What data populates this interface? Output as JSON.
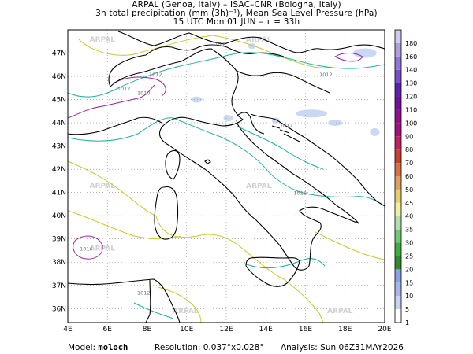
{
  "title": {
    "line1": "ARPAL (Genoa, Italy)  –  ISAC–CNR (Bologna, Italy)",
    "line2": "3h total precipitation (mm (3h)⁻¹), Mean Sea Level Pressure (hPa)",
    "line3": "15 UTC Mon 01 JUN  –  τ = 33h"
  },
  "map": {
    "lon_range": [
      4,
      20
    ],
    "lat_range": [
      35.4,
      48.0
    ],
    "lon_ticks": [
      "4E",
      "6E",
      "8E",
      "10E",
      "12E",
      "14E",
      "16E",
      "18E",
      "20E"
    ],
    "lat_ticks": [
      "36N",
      "37N",
      "38N",
      "39N",
      "40N",
      "41N",
      "42N",
      "43N",
      "44N",
      "45N",
      "46N",
      "47N"
    ],
    "watermark": "ARPAL",
    "isobar_labels": [
      {
        "text": "1012",
        "lon": 11.3,
        "lat": 47.3
      },
      {
        "text": "1012",
        "lon": 8.1,
        "lat": 46.0
      },
      {
        "text": "1012",
        "lon": 6.5,
        "lat": 45.4
      },
      {
        "text": "1010",
        "lon": 7.5,
        "lat": 45.2
      },
      {
        "text": "1012",
        "lon": 16.7,
        "lat": 46.0
      },
      {
        "text": "1012",
        "lon": 14.7,
        "lat": 43.8
      },
      {
        "text": "1012",
        "lon": 15.4,
        "lat": 40.9
      },
      {
        "text": "1016",
        "lon": 4.6,
        "lat": 38.5
      },
      {
        "text": "1012",
        "lon": 7.5,
        "lat": 36.6
      }
    ],
    "colors": {
      "coast": "#000000",
      "isobar_1010": "#a020a0",
      "isobar_1012": "#20b0a0",
      "isobar_1014": "#c8c830",
      "grid": "#888888",
      "precip": "#bcd0f0"
    }
  },
  "colorbar": {
    "labels": [
      "1",
      "5",
      "10",
      "15",
      "20",
      "25",
      "30",
      "35",
      "40",
      "45",
      "50",
      "60",
      "70",
      "80",
      "90",
      "100",
      "110",
      "120",
      "130",
      "140",
      "160",
      "180"
    ],
    "colors": [
      "#ffffff",
      "#c8d2f5",
      "#a6b8ee",
      "#8aa2e6",
      "#2e8b2e",
      "#3fae3f",
      "#73c973",
      "#b0e0b0",
      "#f0f0a0",
      "#e8d070",
      "#e0a060",
      "#d87040",
      "#c84030",
      "#c02060",
      "#a01080",
      "#901090",
      "#7010a0",
      "#6020b0",
      "#7850c8",
      "#9078d8",
      "#b0a0e0",
      "#d0c8f0"
    ]
  },
  "footer": {
    "model_label": "Model:",
    "model_value": "moloch",
    "resolution_label": "Resolution:",
    "resolution_value": "0.037°x0.028°",
    "analysis_label": "Analysis:",
    "analysis_value": "Sun 06Z31MAY2026"
  }
}
